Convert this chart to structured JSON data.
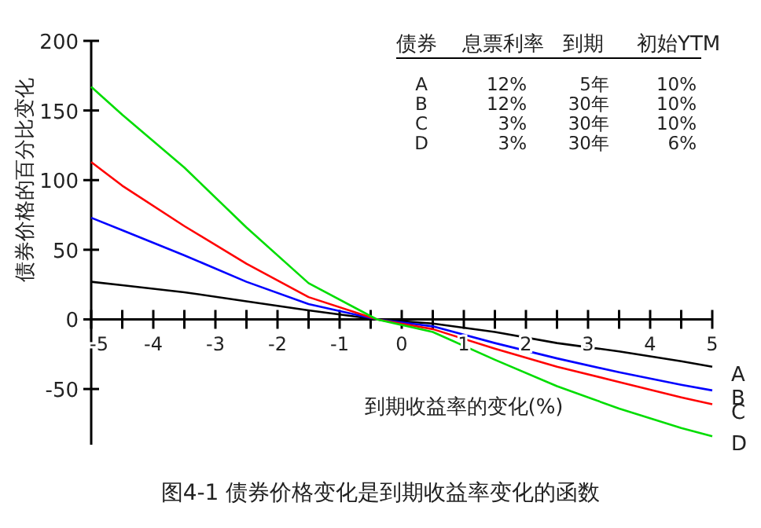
{
  "chart_data": {
    "type": "line",
    "title": "图4-1 债券价格变化是到期收益率变化的函数",
    "xlabel": "到期收益率的变化(%)",
    "ylabel": "债券价格的百分比变化",
    "x": [
      -5,
      -4.5,
      -3.5,
      -2.5,
      -1.5,
      -0.4,
      0.5,
      1.5,
      2.5,
      3.5,
      4.5,
      5
    ],
    "series": [
      {
        "name": "A",
        "color": "#000000",
        "values": [
          27,
          24.5,
          19.5,
          13,
          6.5,
          0,
          -3,
          -9,
          -17,
          -23,
          -30,
          -34
        ]
      },
      {
        "name": "B",
        "color": "#0000ff",
        "values": [
          73,
          64,
          46,
          27,
          11,
          0,
          -5,
          -17,
          -28,
          -38,
          -47,
          -51
        ]
      },
      {
        "name": "C",
        "color": "#ff0000",
        "values": [
          113,
          96,
          67,
          40,
          16,
          0,
          -7,
          -21,
          -34,
          -45,
          -56,
          -61
        ]
      },
      {
        "name": "D",
        "color": "#00dd00",
        "values": [
          167,
          147,
          109,
          66,
          26,
          0,
          -9,
          -29,
          -48,
          -64,
          -78,
          -84
        ]
      }
    ],
    "xlim": [
      -5,
      5
    ],
    "ylim": [
      -90,
      200
    ],
    "xticks": [
      -5,
      {
        "value": -4.5,
        "label": null
      },
      -4,
      {
        "value": -3.5,
        "label": null
      },
      -3,
      {
        "value": -2.5,
        "label": null
      },
      -2,
      {
        "value": -1.5,
        "label": null
      },
      -1,
      {
        "value": -0.5,
        "label": null
      },
      0,
      {
        "value": 0.5,
        "label": null
      },
      1,
      {
        "value": 1.5,
        "label": null
      },
      2,
      {
        "value": 2.5,
        "label": null
      },
      3,
      {
        "value": 3.5,
        "label": null
      },
      4,
      {
        "value": 4.5,
        "label": null
      },
      5
    ],
    "yticks": [
      -50,
      0,
      50,
      100,
      150,
      200
    ],
    "grid": false,
    "legend": false,
    "marker": "none",
    "line_style": "solid",
    "annotations": [
      "债券",
      "息票利率",
      "到期",
      "初始YTM",
      "A",
      "12%",
      "5年",
      "10%",
      "B",
      "12%",
      "30年",
      "10%",
      "C",
      "3%",
      "30年",
      "10%",
      "D",
      "3%",
      "30年",
      "6%"
    ]
  }
}
